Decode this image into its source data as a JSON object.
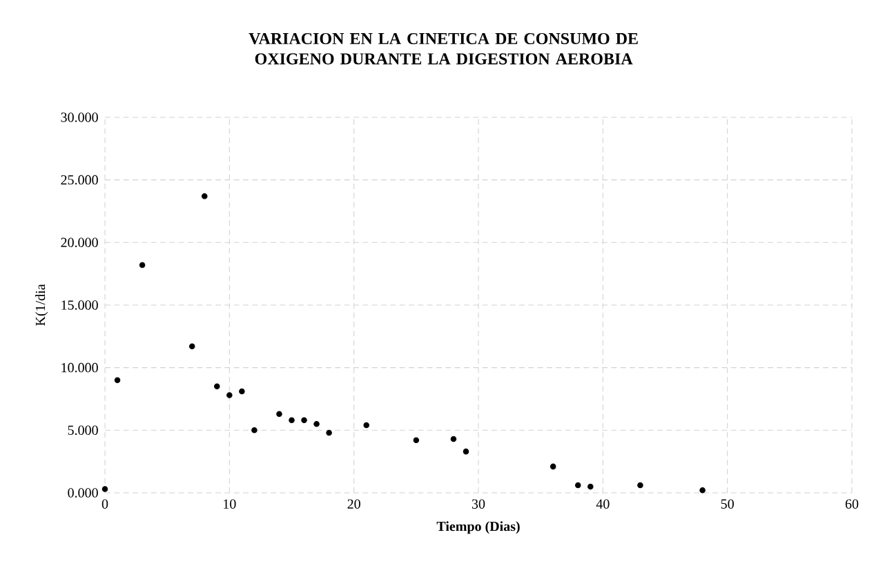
{
  "chart_data": {
    "type": "scatter",
    "title": "VARIACION EN LA CINETICA DE CONSUMO DE OXIGENO DURANTE LA DIGESTION AEROBIA",
    "xlabel": "Tiempo (Dias)",
    "ylabel": "K(1/dia",
    "x": [
      0,
      1,
      3,
      7,
      8,
      9,
      10,
      11,
      12,
      14,
      15,
      16,
      17,
      18,
      21,
      25,
      28,
      29,
      36,
      38,
      39,
      43,
      48
    ],
    "series": [
      {
        "color": "#000000",
        "values": [
          0.3,
          9.0,
          18.2,
          11.7,
          23.7,
          8.5,
          7.8,
          8.1,
          5.0,
          6.3,
          5.8,
          5.8,
          5.5,
          4.8,
          5.4,
          4.2,
          4.3,
          3.3,
          2.1,
          0.6,
          0.5,
          0.6,
          0.2
        ]
      }
    ],
    "xlim": [
      0,
      60
    ],
    "xticks": [
      0,
      10,
      20,
      30,
      40,
      50,
      60
    ],
    "ylim": [
      0,
      30
    ],
    "yticks": [
      {
        "value": 0,
        "label": "0.000"
      },
      {
        "value": 5,
        "label": "5.000"
      },
      {
        "value": 10,
        "label": "10.000"
      },
      {
        "value": 15,
        "label": "15.000"
      },
      {
        "value": 20,
        "label": "20.000"
      },
      {
        "value": 25,
        "label": "25.000"
      },
      {
        "value": 30,
        "label": "30.000"
      }
    ],
    "grid": true,
    "marker": "circle"
  }
}
